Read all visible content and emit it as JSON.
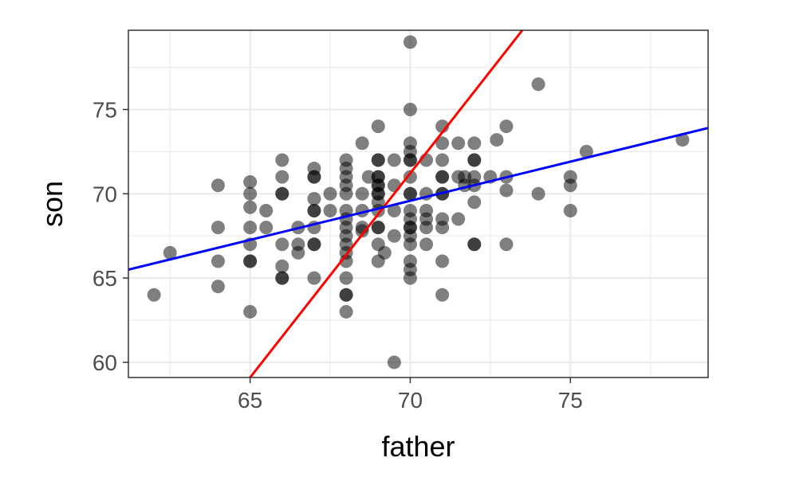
{
  "chart_data": {
    "type": "scatter",
    "title": "",
    "xlabel": "father",
    "ylabel": "son",
    "xlim": [
      61.2,
      79.3
    ],
    "ylim": [
      59.1,
      79.7
    ],
    "x_ticks": [
      65,
      70,
      75
    ],
    "y_ticks": [
      60,
      65,
      70,
      75
    ],
    "x_tick_labels": [
      "65",
      "70",
      "75"
    ],
    "y_tick_labels": [
      "60",
      "65",
      "70",
      "75"
    ],
    "grid": true,
    "legend": "none",
    "point_color": "#000000",
    "point_opacity": 0.5,
    "points": [
      {
        "x": 62,
        "y": 64
      },
      {
        "x": 62.5,
        "y": 66.5
      },
      {
        "x": 64,
        "y": 70.5
      },
      {
        "x": 64,
        "y": 68
      },
      {
        "x": 64,
        "y": 66
      },
      {
        "x": 64,
        "y": 64.5
      },
      {
        "x": 65,
        "y": 70.7
      },
      {
        "x": 65,
        "y": 70
      },
      {
        "x": 65,
        "y": 69.2
      },
      {
        "x": 65,
        "y": 68
      },
      {
        "x": 65,
        "y": 67
      },
      {
        "x": 65,
        "y": 66
      },
      {
        "x": 65,
        "y": 66
      },
      {
        "x": 65,
        "y": 63
      },
      {
        "x": 65.5,
        "y": 69
      },
      {
        "x": 65.5,
        "y": 68
      },
      {
        "x": 66,
        "y": 72
      },
      {
        "x": 66,
        "y": 71
      },
      {
        "x": 66,
        "y": 70
      },
      {
        "x": 66,
        "y": 70
      },
      {
        "x": 66,
        "y": 67
      },
      {
        "x": 66,
        "y": 65.7
      },
      {
        "x": 66,
        "y": 65
      },
      {
        "x": 66,
        "y": 65
      },
      {
        "x": 66.5,
        "y": 68
      },
      {
        "x": 66.5,
        "y": 67
      },
      {
        "x": 66.5,
        "y": 66.5
      },
      {
        "x": 67,
        "y": 71.5
      },
      {
        "x": 67,
        "y": 71
      },
      {
        "x": 67,
        "y": 71
      },
      {
        "x": 67,
        "y": 69.7
      },
      {
        "x": 67,
        "y": 69
      },
      {
        "x": 67,
        "y": 69
      },
      {
        "x": 67,
        "y": 68
      },
      {
        "x": 67,
        "y": 67
      },
      {
        "x": 67,
        "y": 67
      },
      {
        "x": 67,
        "y": 65
      },
      {
        "x": 67.5,
        "y": 70
      },
      {
        "x": 67.5,
        "y": 69
      },
      {
        "x": 68,
        "y": 72
      },
      {
        "x": 68,
        "y": 71.5
      },
      {
        "x": 68,
        "y": 71
      },
      {
        "x": 68,
        "y": 70.5
      },
      {
        "x": 68,
        "y": 70
      },
      {
        "x": 68,
        "y": 69
      },
      {
        "x": 68,
        "y": 68.5
      },
      {
        "x": 68,
        "y": 68
      },
      {
        "x": 68,
        "y": 67.5
      },
      {
        "x": 68,
        "y": 67
      },
      {
        "x": 68,
        "y": 66.5
      },
      {
        "x": 68,
        "y": 66
      },
      {
        "x": 68,
        "y": 65
      },
      {
        "x": 68,
        "y": 64
      },
      {
        "x": 68,
        "y": 64
      },
      {
        "x": 68,
        "y": 63
      },
      {
        "x": 68.5,
        "y": 73
      },
      {
        "x": 68.5,
        "y": 70
      },
      {
        "x": 68.5,
        "y": 69
      },
      {
        "x": 68.5,
        "y": 68
      },
      {
        "x": 68.5,
        "y": 67.8
      },
      {
        "x": 68.7,
        "y": 71
      },
      {
        "x": 69,
        "y": 74
      },
      {
        "x": 69,
        "y": 72
      },
      {
        "x": 69,
        "y": 72
      },
      {
        "x": 69,
        "y": 71
      },
      {
        "x": 69,
        "y": 71
      },
      {
        "x": 69,
        "y": 70.5
      },
      {
        "x": 69,
        "y": 70.5
      },
      {
        "x": 69,
        "y": 70
      },
      {
        "x": 69,
        "y": 70
      },
      {
        "x": 69,
        "y": 69.5
      },
      {
        "x": 69,
        "y": 69
      },
      {
        "x": 69,
        "y": 68
      },
      {
        "x": 69,
        "y": 68
      },
      {
        "x": 69,
        "y": 67
      },
      {
        "x": 69,
        "y": 66
      },
      {
        "x": 69.2,
        "y": 66.5
      },
      {
        "x": 69.5,
        "y": 72
      },
      {
        "x": 69.5,
        "y": 70.5
      },
      {
        "x": 69.5,
        "y": 69
      },
      {
        "x": 69.5,
        "y": 67.5
      },
      {
        "x": 69.5,
        "y": 60
      },
      {
        "x": 70,
        "y": 79
      },
      {
        "x": 70,
        "y": 75
      },
      {
        "x": 70,
        "y": 73
      },
      {
        "x": 70,
        "y": 72.5
      },
      {
        "x": 70,
        "y": 72
      },
      {
        "x": 70,
        "y": 72
      },
      {
        "x": 70,
        "y": 71
      },
      {
        "x": 70,
        "y": 70
      },
      {
        "x": 70,
        "y": 70
      },
      {
        "x": 70,
        "y": 69
      },
      {
        "x": 70,
        "y": 68.5
      },
      {
        "x": 70,
        "y": 68
      },
      {
        "x": 70,
        "y": 68
      },
      {
        "x": 70,
        "y": 67.5
      },
      {
        "x": 70,
        "y": 67
      },
      {
        "x": 70,
        "y": 66
      },
      {
        "x": 70,
        "y": 65.5
      },
      {
        "x": 70,
        "y": 65
      },
      {
        "x": 70.5,
        "y": 72
      },
      {
        "x": 70.5,
        "y": 70
      },
      {
        "x": 70.5,
        "y": 69
      },
      {
        "x": 70.5,
        "y": 68.5
      },
      {
        "x": 70.5,
        "y": 68
      },
      {
        "x": 70.5,
        "y": 67
      },
      {
        "x": 71,
        "y": 74
      },
      {
        "x": 71,
        "y": 73
      },
      {
        "x": 71,
        "y": 72
      },
      {
        "x": 71,
        "y": 71
      },
      {
        "x": 71,
        "y": 71
      },
      {
        "x": 71,
        "y": 70
      },
      {
        "x": 71,
        "y": 70
      },
      {
        "x": 71,
        "y": 68.5
      },
      {
        "x": 71,
        "y": 68
      },
      {
        "x": 71,
        "y": 66
      },
      {
        "x": 71,
        "y": 64
      },
      {
        "x": 71.5,
        "y": 73
      },
      {
        "x": 71.5,
        "y": 71
      },
      {
        "x": 71.5,
        "y": 68.5
      },
      {
        "x": 71.7,
        "y": 71
      },
      {
        "x": 71.7,
        "y": 70.5
      },
      {
        "x": 72,
        "y": 73
      },
      {
        "x": 72,
        "y": 72
      },
      {
        "x": 72,
        "y": 72
      },
      {
        "x": 72,
        "y": 71
      },
      {
        "x": 72,
        "y": 70.5
      },
      {
        "x": 72,
        "y": 69.5
      },
      {
        "x": 72,
        "y": 67
      },
      {
        "x": 72,
        "y": 67
      },
      {
        "x": 72.5,
        "y": 71
      },
      {
        "x": 72.7,
        "y": 73.2
      },
      {
        "x": 73,
        "y": 74
      },
      {
        "x": 73,
        "y": 71
      },
      {
        "x": 73,
        "y": 70.2
      },
      {
        "x": 73,
        "y": 67
      },
      {
        "x": 74,
        "y": 76.5
      },
      {
        "x": 74,
        "y": 70
      },
      {
        "x": 75,
        "y": 71
      },
      {
        "x": 75,
        "y": 70.5
      },
      {
        "x": 75,
        "y": 69
      },
      {
        "x": 75.5,
        "y": 72.5
      },
      {
        "x": 78.5,
        "y": 73.2
      }
    ],
    "lines": [
      {
        "color": "#ff0000",
        "x": [
          65,
          73.5
        ],
        "y": [
          59.1,
          79.7
        ]
      },
      {
        "color": "#0000ff",
        "x": [
          61.2,
          79.3
        ],
        "y": [
          65.5,
          73.9
        ]
      }
    ]
  }
}
